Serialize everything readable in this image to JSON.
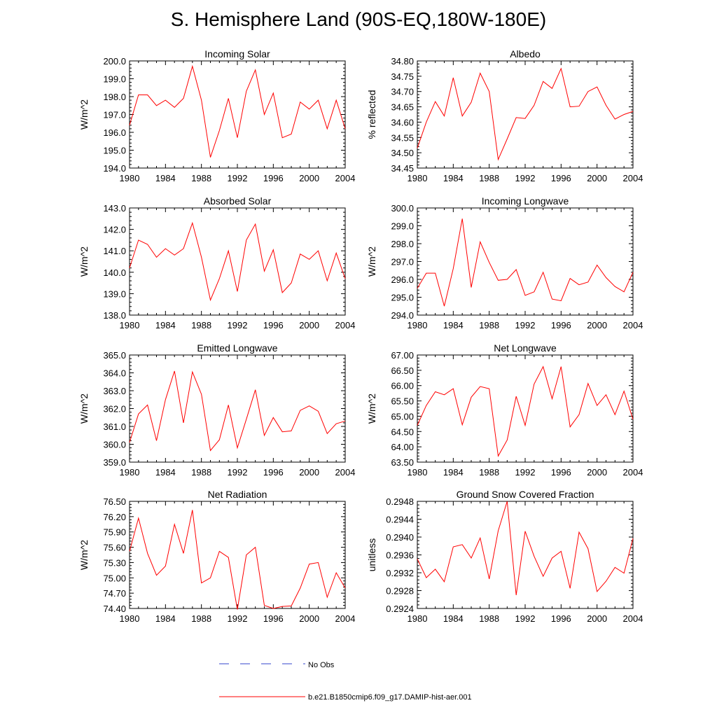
{
  "page_title": "S. Hemisphere Land (90S-EQ,180W-180E)",
  "colors": {
    "model_line": "#ff0000",
    "obs_line": "#3344cc",
    "axis": "#000000"
  },
  "legend": {
    "entries": [
      {
        "label": "No Obs",
        "style": "dashed",
        "color": "#3344cc"
      },
      {
        "label": "b.e21.B1850cmip6.f09_g17.DAMIP-hist-aer.001",
        "style": "solid",
        "color": "#ff0000"
      }
    ]
  },
  "chart_data": [
    {
      "type": "line",
      "title": "Incoming Solar",
      "ylabel": "W/m^2",
      "xlim": [
        1980,
        2004
      ],
      "ylim": [
        194.0,
        200.0
      ],
      "xticks": [
        "1980",
        "1984",
        "1988",
        "1992",
        "1996",
        "2000",
        "2004"
      ],
      "yticks": [
        "194.0",
        "195.0",
        "196.0",
        "197.0",
        "198.0",
        "199.0",
        "200.0"
      ],
      "x": [
        1980,
        1981,
        1982,
        1983,
        1984,
        1985,
        1986,
        1987,
        1988,
        1989,
        1990,
        1991,
        1992,
        1993,
        1994,
        1995,
        1996,
        1997,
        1998,
        1999,
        2000,
        2001,
        2002,
        2003,
        2004
      ],
      "series": [
        {
          "name": "b.e21.B1850cmip6.f09_g17.DAMIP-hist-aer.001",
          "values": [
            196.4,
            198.1,
            198.1,
            197.5,
            197.8,
            197.4,
            197.9,
            199.7,
            197.8,
            194.6,
            196.1,
            197.9,
            195.7,
            198.3,
            199.5,
            197.0,
            198.2,
            195.7,
            195.9,
            197.7,
            197.3,
            197.8,
            196.2,
            197.8,
            196.2
          ]
        }
      ]
    },
    {
      "type": "line",
      "title": "Albedo",
      "ylabel": "% reflected",
      "xlim": [
        1980,
        2004
      ],
      "ylim": [
        34.45,
        34.8
      ],
      "xticks": [
        "1980",
        "1984",
        "1988",
        "1992",
        "1996",
        "2000",
        "2004"
      ],
      "yticks": [
        "34.45",
        "34.50",
        "34.55",
        "34.60",
        "34.65",
        "34.70",
        "34.75",
        "34.80"
      ],
      "x": [
        1980,
        1981,
        1982,
        1983,
        1984,
        1985,
        1986,
        1987,
        1988,
        1989,
        1990,
        1991,
        1992,
        1993,
        1994,
        1995,
        1996,
        1997,
        1998,
        1999,
        2000,
        2001,
        2002,
        2003,
        2004
      ],
      "series": [
        {
          "name": "b.e21.B1850cmip6.f09_g17.DAMIP-hist-aer.001",
          "values": [
            34.515,
            34.6,
            34.667,
            34.62,
            34.745,
            34.62,
            34.665,
            34.76,
            34.7,
            34.478,
            34.545,
            34.615,
            34.612,
            34.655,
            34.733,
            34.71,
            34.775,
            34.65,
            34.652,
            34.7,
            34.715,
            34.655,
            34.61,
            34.625,
            34.635
          ]
        }
      ]
    },
    {
      "type": "line",
      "title": "Absorbed Solar",
      "ylabel": "W/m^2",
      "xlim": [
        1980,
        2004
      ],
      "ylim": [
        138.0,
        143.0
      ],
      "xticks": [
        "1980",
        "1984",
        "1988",
        "1992",
        "1996",
        "2000",
        "2004"
      ],
      "yticks": [
        "138.0",
        "139.0",
        "140.0",
        "141.0",
        "142.0",
        "143.0"
      ],
      "x": [
        1980,
        1981,
        1982,
        1983,
        1984,
        1985,
        1986,
        1987,
        1988,
        1989,
        1990,
        1991,
        1992,
        1993,
        1994,
        1995,
        1996,
        1997,
        1998,
        1999,
        2000,
        2001,
        2002,
        2003,
        2004
      ],
      "series": [
        {
          "name": "b.e21.B1850cmip6.f09_g17.DAMIP-hist-aer.001",
          "values": [
            140.2,
            141.5,
            141.3,
            140.7,
            141.1,
            140.8,
            141.1,
            142.3,
            140.7,
            138.7,
            139.7,
            141.0,
            139.1,
            141.5,
            142.25,
            140.05,
            141.05,
            139.05,
            139.5,
            140.85,
            140.6,
            141.0,
            139.6,
            140.9,
            139.7
          ]
        }
      ]
    },
    {
      "type": "line",
      "title": "Incoming Longwave",
      "ylabel": "W/m^2",
      "xlim": [
        1980,
        2004
      ],
      "ylim": [
        294.0,
        300.0
      ],
      "xticks": [
        "1980",
        "1984",
        "1988",
        "1992",
        "1996",
        "2000",
        "2004"
      ],
      "yticks": [
        "294.0",
        "295.0",
        "296.0",
        "297.0",
        "298.0",
        "299.0",
        "300.0"
      ],
      "x": [
        1980,
        1981,
        1982,
        1983,
        1984,
        1985,
        1986,
        1987,
        1988,
        1989,
        1990,
        1991,
        1992,
        1993,
        1994,
        1995,
        1996,
        1997,
        1998,
        1999,
        2000,
        2001,
        2002,
        2003,
        2004
      ],
      "series": [
        {
          "name": "b.e21.B1850cmip6.f09_g17.DAMIP-hist-aer.001",
          "values": [
            295.5,
            296.35,
            296.35,
            294.5,
            296.6,
            299.4,
            295.55,
            298.1,
            296.95,
            295.95,
            296.0,
            296.55,
            295.1,
            295.3,
            296.4,
            294.9,
            294.8,
            296.05,
            295.7,
            295.85,
            296.8,
            296.1,
            295.6,
            295.3,
            296.4
          ]
        }
      ]
    },
    {
      "type": "line",
      "title": "Emitted Longwave",
      "ylabel": "W/m^2",
      "xlim": [
        1980,
        2004
      ],
      "ylim": [
        359.0,
        365.0
      ],
      "xticks": [
        "1980",
        "1984",
        "1988",
        "1992",
        "1996",
        "2000",
        "2004"
      ],
      "yticks": [
        "359.0",
        "360.0",
        "361.0",
        "362.0",
        "363.0",
        "364.0",
        "365.0"
      ],
      "x": [
        1980,
        1981,
        1982,
        1983,
        1984,
        1985,
        1986,
        1987,
        1988,
        1989,
        1990,
        1991,
        1992,
        1993,
        1994,
        1995,
        1996,
        1997,
        1998,
        1999,
        2000,
        2001,
        2002,
        2003,
        2004
      ],
      "series": [
        {
          "name": "b.e21.B1850cmip6.f09_g17.DAMIP-hist-aer.001",
          "values": [
            360.1,
            361.7,
            362.2,
            360.2,
            362.5,
            364.1,
            361.2,
            364.05,
            362.8,
            359.65,
            360.25,
            362.2,
            359.8,
            361.4,
            363.05,
            360.5,
            361.5,
            360.7,
            360.75,
            361.9,
            362.15,
            361.85,
            360.6,
            361.15,
            361.3
          ]
        }
      ]
    },
    {
      "type": "line",
      "title": "Net Longwave",
      "ylabel": "W/m^2",
      "xlim": [
        1980,
        2004
      ],
      "ylim": [
        63.5,
        67.0
      ],
      "xticks": [
        "1980",
        "1984",
        "1988",
        "1992",
        "1996",
        "2000",
        "2004"
      ],
      "yticks": [
        "63.50",
        "64.00",
        "64.50",
        "65.00",
        "65.50",
        "66.00",
        "66.50",
        "67.00"
      ],
      "x": [
        1980,
        1981,
        1982,
        1983,
        1984,
        1985,
        1986,
        1987,
        1988,
        1989,
        1990,
        1991,
        1992,
        1993,
        1994,
        1995,
        1996,
        1997,
        1998,
        1999,
        2000,
        2001,
        2002,
        2003,
        2004
      ],
      "series": [
        {
          "name": "b.e21.B1850cmip6.f09_g17.DAMIP-hist-aer.001",
          "values": [
            64.7,
            65.35,
            65.8,
            65.7,
            65.9,
            64.72,
            65.62,
            65.97,
            65.9,
            63.7,
            64.22,
            65.65,
            64.7,
            66.05,
            66.62,
            65.57,
            66.62,
            64.65,
            65.05,
            66.07,
            65.35,
            65.7,
            65.05,
            65.82,
            64.9
          ]
        }
      ]
    },
    {
      "type": "line",
      "title": "Net Radiation",
      "ylabel": "W/m^2",
      "xlim": [
        1980,
        2004
      ],
      "ylim": [
        74.4,
        76.5
      ],
      "xticks": [
        "1980",
        "1984",
        "1988",
        "1992",
        "1996",
        "2000",
        "2004"
      ],
      "yticks": [
        "74.40",
        "74.70",
        "75.00",
        "75.30",
        "75.60",
        "75.90",
        "76.20",
        "76.50"
      ],
      "x": [
        1980,
        1981,
        1982,
        1983,
        1984,
        1985,
        1986,
        1987,
        1988,
        1989,
        1990,
        1991,
        1992,
        1993,
        1994,
        1995,
        1996,
        1997,
        1998,
        1999,
        2000,
        2001,
        2002,
        2003,
        2004
      ],
      "series": [
        {
          "name": "b.e21.B1850cmip6.f09_g17.DAMIP-hist-aer.001",
          "values": [
            75.52,
            76.17,
            75.48,
            75.05,
            75.23,
            76.05,
            75.48,
            76.33,
            74.9,
            75.0,
            75.52,
            75.4,
            74.38,
            75.45,
            75.6,
            74.46,
            74.4,
            74.44,
            74.45,
            74.8,
            75.27,
            75.3,
            74.62,
            75.1,
            74.8
          ]
        }
      ]
    },
    {
      "type": "line",
      "title": "Ground Snow Covered Fraction",
      "ylabel": "unitless",
      "xlim": [
        1980,
        2004
      ],
      "ylim": [
        0.2924,
        0.2948
      ],
      "xticks": [
        "1980",
        "1984",
        "1988",
        "1992",
        "1996",
        "2000",
        "2004"
      ],
      "yticks": [
        "0.2924",
        "0.2928",
        "0.2932",
        "0.2936",
        "0.2940",
        "0.2944",
        "0.2948"
      ],
      "x": [
        1980,
        1981,
        1982,
        1983,
        1984,
        1985,
        1986,
        1987,
        1988,
        1989,
        1990,
        1991,
        1992,
        1993,
        1994,
        1995,
        1996,
        1997,
        1998,
        1999,
        2000,
        2001,
        2002,
        2003,
        2004
      ],
      "series": [
        {
          "name": "b.e21.B1850cmip6.f09_g17.DAMIP-hist-aer.001",
          "values": [
            0.29351,
            0.29309,
            0.29328,
            0.293,
            0.29378,
            0.29383,
            0.29353,
            0.29398,
            0.29306,
            0.29414,
            0.2948,
            0.2927,
            0.29413,
            0.29357,
            0.29312,
            0.29353,
            0.29368,
            0.29285,
            0.29411,
            0.29374,
            0.29278,
            0.29301,
            0.29332,
            0.29319,
            0.29397
          ]
        }
      ]
    }
  ]
}
